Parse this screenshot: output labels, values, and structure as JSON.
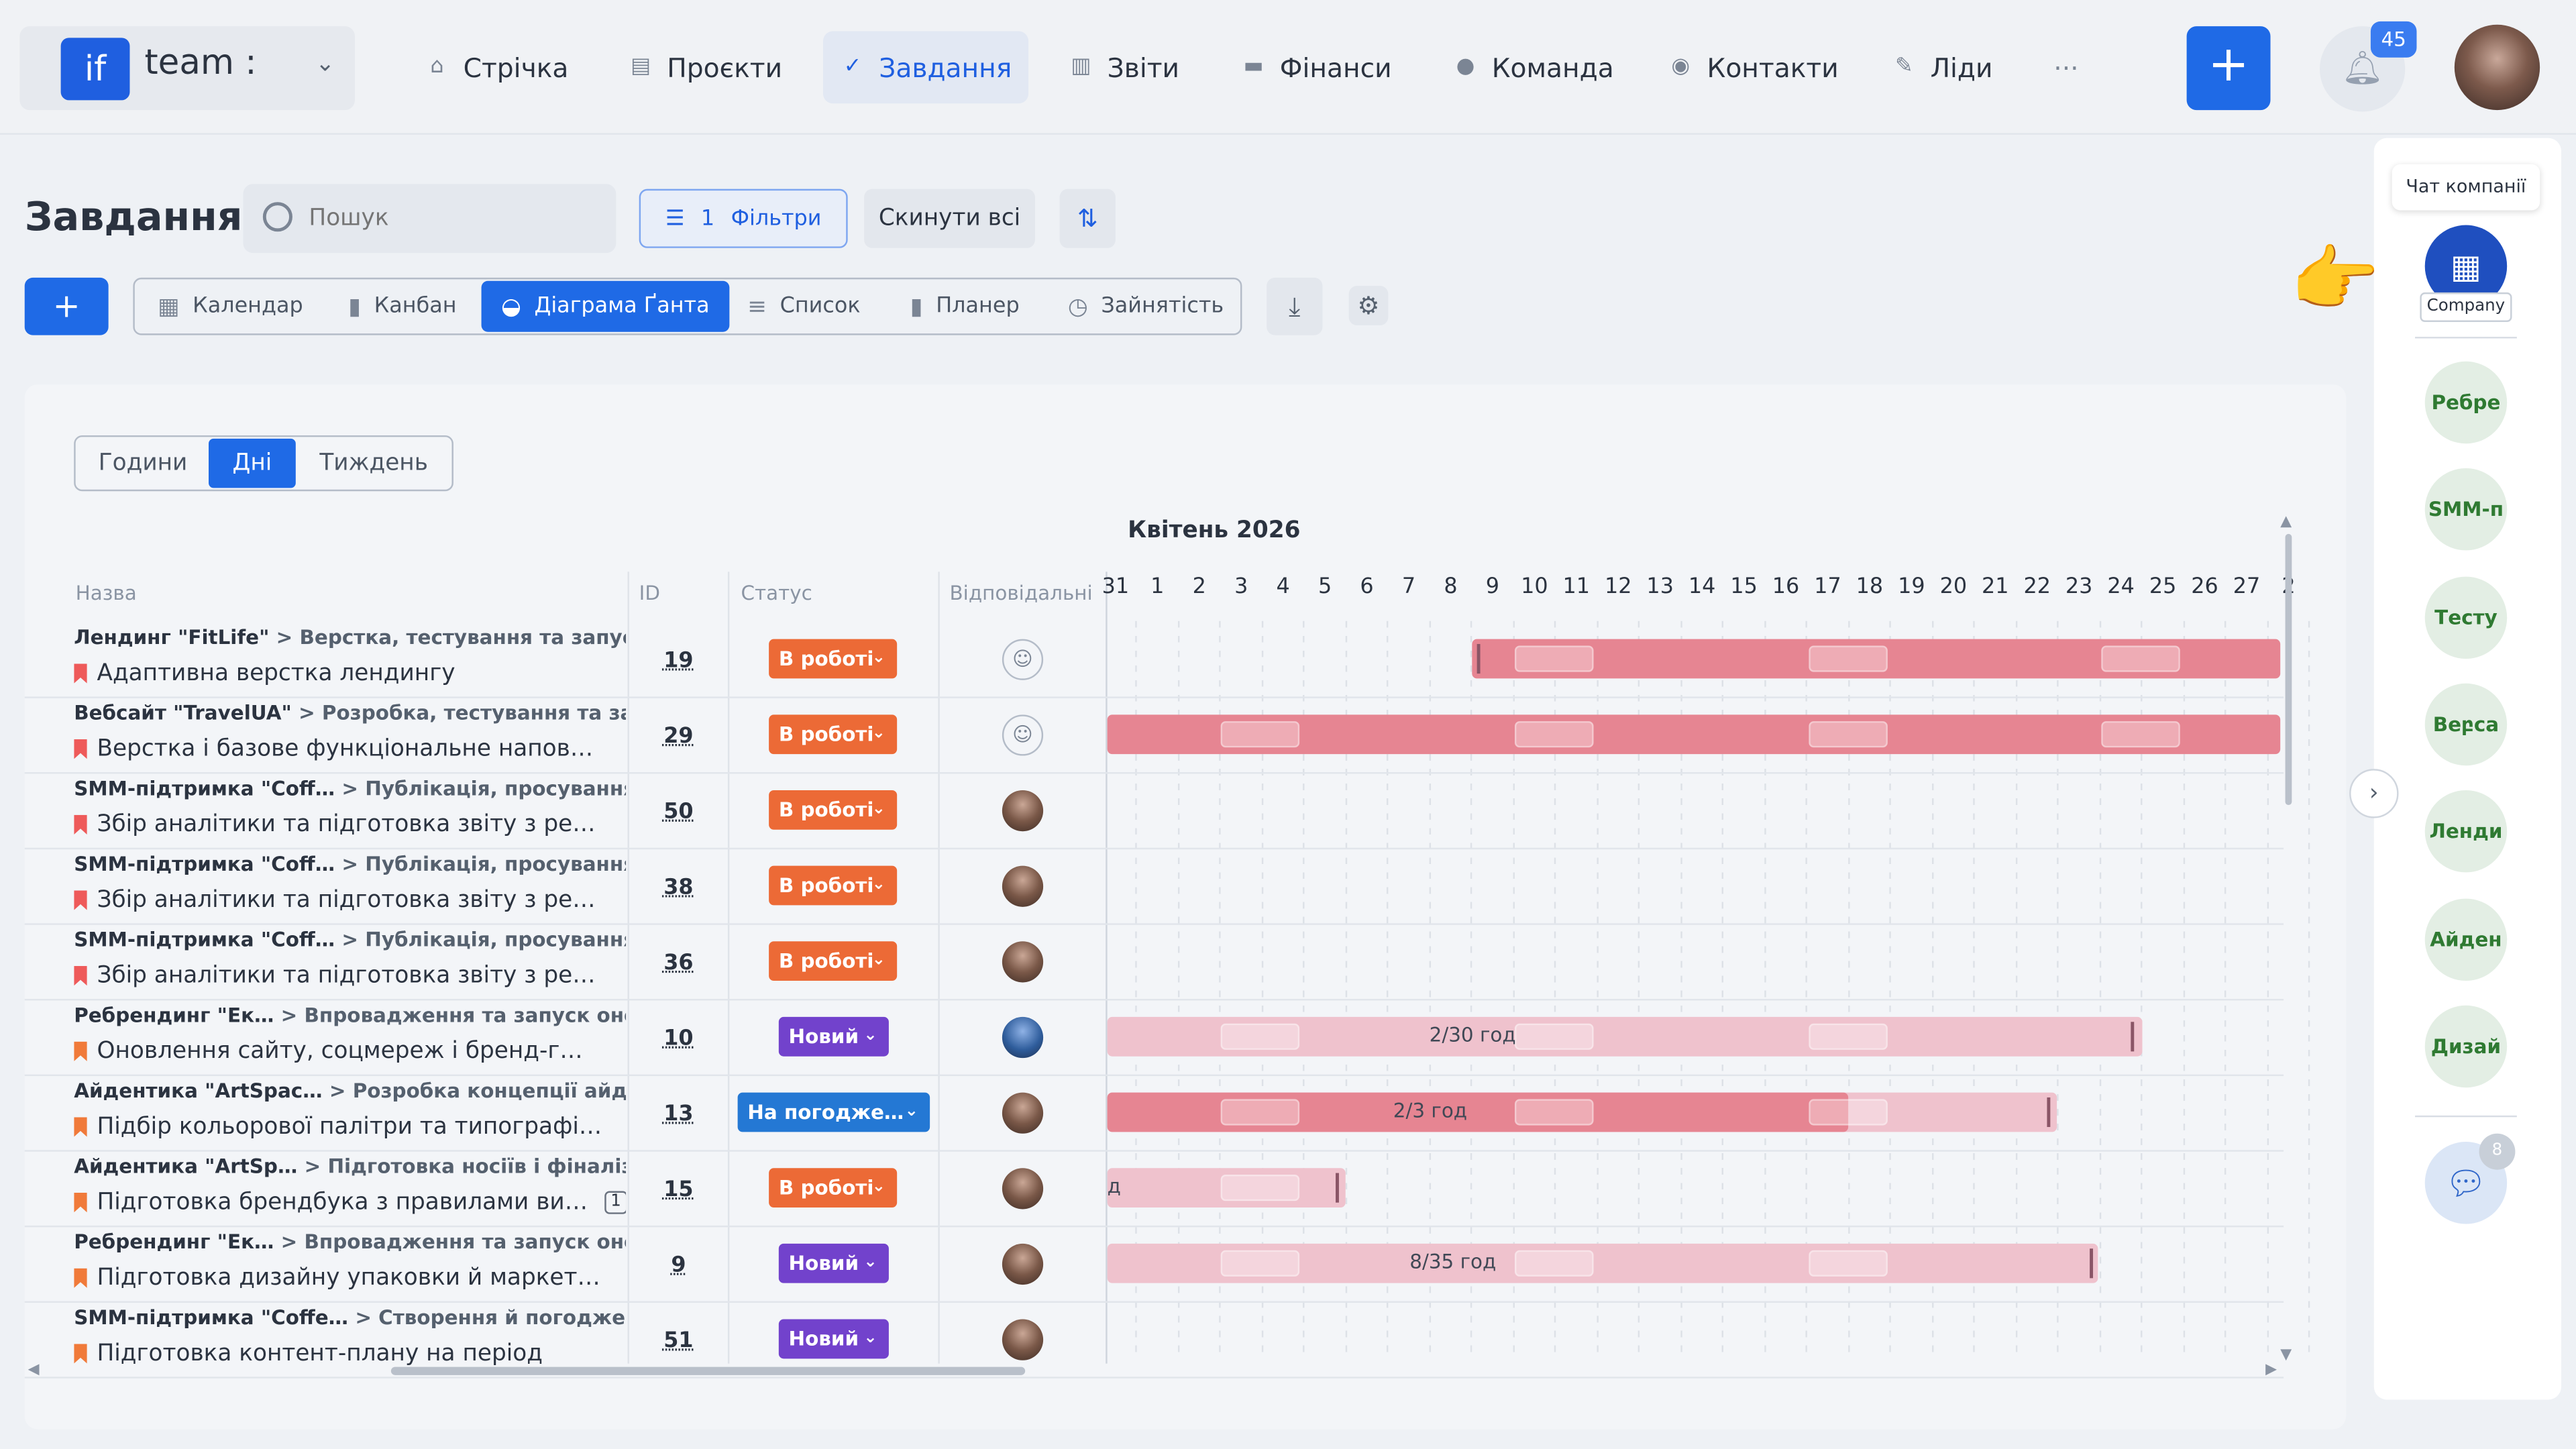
{
  "app": {
    "logo_mark": "if",
    "team_label": "team :"
  },
  "nav": [
    {
      "label": "Стрічка",
      "icon": "home-icon",
      "glyph": "⌂"
    },
    {
      "label": "Проєкти",
      "icon": "document-icon",
      "glyph": "▤"
    },
    {
      "label": "Завдання",
      "icon": "check-circle-icon",
      "glyph": "✓",
      "active": true
    },
    {
      "label": "Звіти",
      "icon": "report-icon",
      "glyph": "▥"
    },
    {
      "label": "Фінанси",
      "icon": "wallet-icon",
      "glyph": "▬"
    },
    {
      "label": "Команда",
      "icon": "user-icon",
      "glyph": "●"
    },
    {
      "label": "Контакти",
      "icon": "contacts-icon",
      "glyph": "◉"
    },
    {
      "label": "Ліди",
      "icon": "leads-icon",
      "glyph": "✎"
    }
  ],
  "more": "···",
  "notifications": {
    "count": "45"
  },
  "page": {
    "title": "Завдання"
  },
  "search": {
    "placeholder": "Пошук"
  },
  "filters": {
    "count": "1",
    "label": "Фільтри",
    "reset": "Скинути всі"
  },
  "add_label": "+",
  "views": [
    {
      "label": "Календар",
      "icon": "calendar-icon",
      "glyph": "▦"
    },
    {
      "label": "Канбан",
      "icon": "kanban-icon",
      "glyph": "▮"
    },
    {
      "label": "Діаграма Ґанта",
      "icon": "gantt-icon",
      "glyph": "◒",
      "active": true
    },
    {
      "label": "Список",
      "icon": "list-icon",
      "glyph": "≡"
    },
    {
      "label": "Планер",
      "icon": "planner-icon",
      "glyph": "▮"
    },
    {
      "label": "Зайнятість",
      "icon": "clock-icon",
      "glyph": "◷"
    }
  ],
  "scale_tabs": [
    {
      "label": "Години"
    },
    {
      "label": "Дні",
      "active": true
    },
    {
      "label": "Тиждень"
    }
  ],
  "gantt": {
    "month": "Квітень 2026",
    "columns": {
      "name": "Назва",
      "id": "ID",
      "status": "Статус",
      "assignee": "Відповідальні"
    },
    "days": [
      "31",
      "1",
      "2",
      "3",
      "4",
      "5",
      "6",
      "7",
      "8",
      "9",
      "10",
      "11",
      "12",
      "13",
      "14",
      "15",
      "16",
      "17",
      "18",
      "19",
      "20",
      "21",
      "22",
      "23",
      "24",
      "25",
      "26",
      "27",
      "2"
    ],
    "rows": [
      {
        "project": "Лендинг \"FitLife\"",
        "phase": "> Верстка, тестування та запуск",
        "task": "Адаптивна верстка лендингу",
        "id": "19",
        "status": "В роботі",
        "bar_label": ""
      },
      {
        "project": "Вебсайт \"TravelUA\"",
        "phase": "> Розробка, тестування та запуск",
        "task": "Верстка і базове функціональне напов…",
        "id": "29",
        "status": "В роботі",
        "bar_label": ""
      },
      {
        "project": "SMM-підтримка \"Coff…",
        "phase": "> Публікація, просування та а…",
        "task": "Збір аналітики та підготовка звіту з ре…",
        "id": "50",
        "status": "В роботі",
        "bar_label": ""
      },
      {
        "project": "SMM-підтримка \"Coff…",
        "phase": "> Публікація, просування та а…",
        "task": "Збір аналітики та підготовка звіту з ре…",
        "id": "38",
        "status": "В роботі",
        "bar_label": ""
      },
      {
        "project": "SMM-підтримка \"Coff…",
        "phase": "> Публікація, просування та а…",
        "task": "Збір аналітики та підготовка звіту з ре…",
        "id": "36",
        "status": "В роботі",
        "bar_label": ""
      },
      {
        "project": "Ребрендинг \"Ек…",
        "phase": "> Впровадження та запуск оновлен…",
        "task": "Оновлення сайту, соцмереж і бренд-г…",
        "id": "10",
        "status": "Новий",
        "bar_label": "2/30 год"
      },
      {
        "project": "Айдентика \"ArtSpac…",
        "phase": "> Розробка концепції айденти…",
        "task": "Підбір кольорової палітри та типографі…",
        "id": "13",
        "status": "На погодже…",
        "bar_label": "2/3 год"
      },
      {
        "project": "Айдентика \"ArtSp…",
        "phase": "> Підготовка носіїв і фіналізація …",
        "task": "Підготовка брендбука з правилами ви…",
        "id": "15",
        "status": "В роботі",
        "bar_label": "д",
        "subtasks": "1"
      },
      {
        "project": "Ребрендинг \"Ек…",
        "phase": "> Впровадження та запуск оновлен…",
        "task": "Підготовка дизайну упаковки й маркет…",
        "id": "9",
        "status": "Новий",
        "bar_label": "8/35 год"
      },
      {
        "project": "SMM-підтримка \"Coffe…",
        "phase": "> Створення й погодження к…",
        "task": "Підготовка контент-плану на період",
        "id": "51",
        "status": "Новий",
        "bar_label": ""
      }
    ]
  },
  "sidebar": {
    "tooltip": "Чат компанії",
    "company_label": "Company",
    "chats": [
      "Ребре",
      "SMM-п",
      "Тесту",
      "Веբса",
      "Ленди",
      "Айден",
      "Дизай"
    ],
    "messages_badge": "8"
  },
  "colors": {
    "accent": "#1f6ae6",
    "status_work": "#ec6a36",
    "status_new": "#7242cc",
    "status_approval": "#2478d4",
    "bar_red": "#e68592",
    "bar_pink": "#efc2cd"
  }
}
